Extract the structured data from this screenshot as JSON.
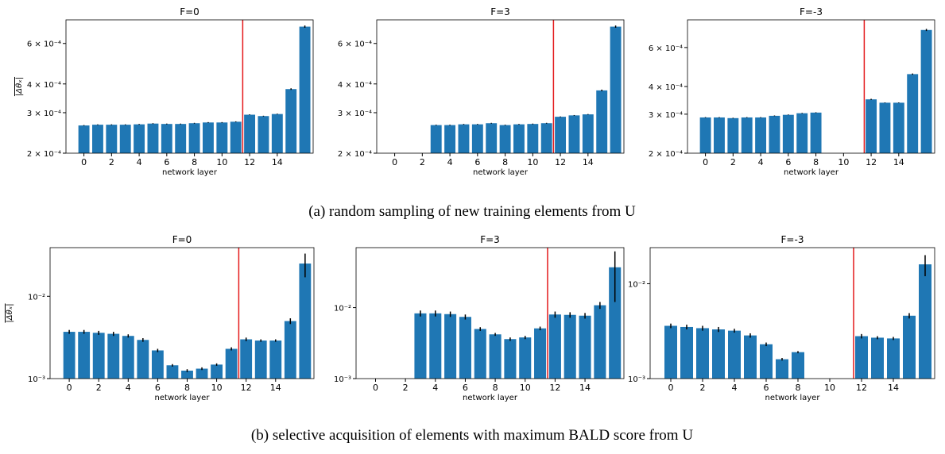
{
  "chart_data": [
    {
      "type": "bar",
      "title": "F=0",
      "xlabel": "network layer",
      "ylabel": "|Δθₓ|",
      "x": [
        0,
        1,
        2,
        3,
        4,
        5,
        6,
        7,
        8,
        9,
        10,
        11,
        12,
        13,
        14,
        15,
        16
      ],
      "values": [
        0.000264,
        0.000266,
        0.000266,
        0.000266,
        0.000267,
        0.000269,
        0.000268,
        0.000268,
        0.00027,
        0.000272,
        0.000272,
        0.000274,
        0.000294,
        0.00029,
        0.000296,
        0.00038,
        0.00071
      ],
      "errors": [
        1e-06,
        1e-06,
        1e-06,
        1e-06,
        1e-06,
        1e-06,
        1e-06,
        1e-06,
        1e-06,
        1e-06,
        1e-06,
        1e-06,
        1e-06,
        1e-06,
        1e-06,
        3e-06,
        8e-06
      ],
      "color": "#1f77b4",
      "xlim": [
        -1.3,
        16.6
      ],
      "xticks": [
        0,
        2,
        4,
        6,
        8,
        10,
        12,
        14
      ],
      "ylim": [
        0.0002,
        0.00076
      ],
      "log_y": true,
      "yticks": [
        {
          "value": 0.0002,
          "label": "2 × 10⁻⁴"
        },
        {
          "value": 0.0003,
          "label": "3 × 10⁻⁴"
        },
        {
          "value": 0.0004,
          "label": "4 × 10⁻⁴"
        },
        {
          "value": 0.0006,
          "label": "6 × 10⁻⁴"
        }
      ],
      "vline": 11.5,
      "vline_color": "#e41a1c"
    },
    {
      "type": "bar",
      "title": "F=3",
      "xlabel": "network layer",
      "x": [
        0,
        1,
        2,
        3,
        4,
        5,
        6,
        7,
        8,
        9,
        10,
        11,
        12,
        13,
        14,
        15,
        16
      ],
      "values": [
        null,
        null,
        null,
        0.000265,
        0.000265,
        0.000267,
        0.000267,
        0.00027,
        0.000265,
        0.000267,
        0.000268,
        0.00027,
        0.000288,
        0.000292,
        0.000295,
        0.000375,
        0.00071
      ],
      "errors": [
        null,
        null,
        null,
        1e-06,
        1e-06,
        1e-06,
        1e-06,
        1e-06,
        1e-06,
        1e-06,
        1e-06,
        1e-06,
        1e-06,
        1e-06,
        1e-06,
        3e-06,
        8e-06
      ],
      "color": "#1f77b4",
      "xlim": [
        -1.3,
        16.6
      ],
      "xticks": [
        0,
        2,
        4,
        6,
        8,
        10,
        12,
        14
      ],
      "ylim": [
        0.0002,
        0.00076
      ],
      "log_y": true,
      "yticks": [
        {
          "value": 0.0002,
          "label": "2 × 10⁻⁴"
        },
        {
          "value": 0.0003,
          "label": "3 × 10⁻⁴"
        },
        {
          "value": 0.0004,
          "label": "4 × 10⁻⁴"
        },
        {
          "value": 0.0006,
          "label": "6 × 10⁻⁴"
        }
      ],
      "vline": 11.5,
      "vline_color": "#e41a1c"
    },
    {
      "type": "bar",
      "title": "F=-3",
      "xlabel": "network layer",
      "x": [
        0,
        1,
        2,
        3,
        4,
        5,
        6,
        7,
        8,
        9,
        10,
        11,
        12,
        13,
        14,
        15,
        16
      ],
      "values": [
        0.00029,
        0.00029,
        0.000288,
        0.00029,
        0.00029,
        0.000295,
        0.000298,
        0.000303,
        0.000305,
        null,
        null,
        null,
        0.00035,
        0.000338,
        0.000338,
        0.000455,
        0.00072
      ],
      "errors": [
        1e-06,
        1e-06,
        1e-06,
        1e-06,
        1e-06,
        1e-06,
        1e-06,
        1e-06,
        1e-06,
        null,
        null,
        null,
        2e-06,
        1e-06,
        1e-06,
        3e-06,
        8e-06
      ],
      "color": "#1f77b4",
      "xlim": [
        -1.3,
        16.6
      ],
      "xticks": [
        0,
        2,
        4,
        6,
        8,
        10,
        12,
        14
      ],
      "ylim": [
        0.0002,
        0.0008
      ],
      "log_y": true,
      "yticks": [
        {
          "value": 0.0002,
          "label": "2 × 10⁻⁴"
        },
        {
          "value": 0.0003,
          "label": "3 × 10⁻⁴"
        },
        {
          "value": 0.0004,
          "label": "4 × 10⁻⁴"
        },
        {
          "value": 0.0006,
          "label": "6 × 10⁻⁴"
        }
      ],
      "vline": 11.5,
      "vline_color": "#e41a1c"
    },
    {
      "type": "bar",
      "title": "F=0",
      "xlabel": "network layer",
      "ylabel": "|Δθₓ|",
      "x": [
        0,
        1,
        2,
        3,
        4,
        5,
        6,
        7,
        8,
        9,
        10,
        11,
        12,
        13,
        14,
        15,
        16
      ],
      "values": [
        0.0037,
        0.0037,
        0.0036,
        0.0035,
        0.0033,
        0.00295,
        0.0022,
        0.00145,
        0.00125,
        0.00132,
        0.00148,
        0.0023,
        0.003,
        0.0029,
        0.0029,
        0.005,
        0.025
      ],
      "errors": [
        0.0002,
        0.0002,
        0.0002,
        0.0002,
        0.00015,
        0.00015,
        0.0001,
        5e-05,
        5e-05,
        5e-05,
        5e-05,
        0.0001,
        0.00015,
        0.0001,
        0.0001,
        0.0004,
        0.008
      ],
      "color": "#1f77b4",
      "xlim": [
        -1.3,
        16.6
      ],
      "xticks": [
        0,
        2,
        4,
        6,
        8,
        10,
        12,
        14
      ],
      "ylim": [
        0.001,
        0.039
      ],
      "log_y": true,
      "yticks": [
        {
          "value": 0.001,
          "label": "10⁻³"
        },
        {
          "value": 0.01,
          "label": "10⁻²"
        }
      ],
      "vline": 11.5,
      "vline_color": "#e41a1c"
    },
    {
      "type": "bar",
      "title": "F=3",
      "xlabel": "network layer",
      "x": [
        0,
        1,
        2,
        3,
        4,
        5,
        6,
        7,
        8,
        9,
        10,
        11,
        12,
        13,
        14,
        15,
        16
      ],
      "values": [
        null,
        null,
        null,
        0.0083,
        0.0083,
        0.0081,
        0.0074,
        0.005,
        0.0042,
        0.0036,
        0.0038,
        0.0051,
        0.008,
        0.0079,
        0.0077,
        0.0108,
        0.037
      ],
      "errors": [
        null,
        null,
        null,
        0.0008,
        0.0008,
        0.0007,
        0.0006,
        0.0003,
        0.0002,
        0.0002,
        0.0002,
        0.0003,
        0.0008,
        0.0007,
        0.0007,
        0.0012,
        0.025
      ],
      "color": "#1f77b4",
      "xlim": [
        -1.3,
        16.6
      ],
      "xticks": [
        0,
        2,
        4,
        6,
        8,
        10,
        12,
        14
      ],
      "ylim": [
        0.001,
        0.07
      ],
      "log_y": true,
      "yticks": [
        {
          "value": 0.001,
          "label": "10⁻³"
        },
        {
          "value": 0.01,
          "label": "10⁻²"
        }
      ],
      "vline": 11.5,
      "vline_color": "#e41a1c"
    },
    {
      "type": "bar",
      "title": "F=-3",
      "xlabel": "network layer",
      "x": [
        0,
        1,
        2,
        3,
        4,
        5,
        6,
        7,
        8,
        9,
        10,
        11,
        12,
        13,
        14,
        15,
        16
      ],
      "values": [
        0.0036,
        0.0035,
        0.0034,
        0.0033,
        0.0032,
        0.00285,
        0.0023,
        0.0016,
        0.0019,
        null,
        null,
        null,
        0.0028,
        0.0027,
        0.00265,
        0.0046,
        0.016
      ],
      "errors": [
        0.0002,
        0.0002,
        0.0002,
        0.0002,
        0.00015,
        0.00015,
        0.0001,
        5e-05,
        5e-05,
        null,
        null,
        null,
        0.00015,
        0.0001,
        0.0001,
        0.0003,
        0.004
      ],
      "color": "#1f77b4",
      "xlim": [
        -1.3,
        16.6
      ],
      "xticks": [
        0,
        2,
        4,
        6,
        8,
        10,
        12,
        14
      ],
      "ylim": [
        0.001,
        0.024
      ],
      "log_y": true,
      "yticks": [
        {
          "value": 0.001,
          "label": "10⁻³"
        },
        {
          "value": 0.01,
          "label": "10⁻²"
        }
      ],
      "vline": 11.5,
      "vline_color": "#e41a1c"
    }
  ],
  "captions": [
    "(a) random sampling of new training elements from U",
    "(b) selective acquisition of elements with maximum BALD score from U"
  ]
}
